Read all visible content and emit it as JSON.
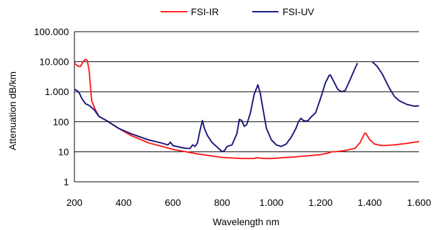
{
  "chart_data": {
    "type": "line",
    "title": "",
    "xlabel": "Wavelength nm",
    "ylabel": "Attenuation dB/km",
    "xlim": [
      200,
      1600
    ],
    "ylim": [
      1,
      100000
    ],
    "yscale": "log",
    "grid": "horizontal",
    "legend_position": "top",
    "x_tick_labels": [
      "200",
      "400",
      "600",
      "800",
      "1.000",
      "1.200",
      "1.400",
      "1.600"
    ],
    "x_tick_values": [
      200,
      400,
      600,
      800,
      1000,
      1200,
      1400,
      1600
    ],
    "y_tick_labels": [
      "1",
      "10",
      "100",
      "1.000",
      "10.000",
      "100.000"
    ],
    "y_tick_values": [
      1,
      10,
      100,
      1000,
      10000,
      100000
    ],
    "series": [
      {
        "name": "FSI-IR",
        "color": "#ff2020",
        "points": [
          [
            200,
            9000
          ],
          [
            215,
            7000
          ],
          [
            225,
            7000
          ],
          [
            235,
            10000
          ],
          [
            245,
            12000
          ],
          [
            252,
            11000
          ],
          [
            260,
            5000
          ],
          [
            270,
            500
          ],
          [
            285,
            250
          ],
          [
            300,
            150
          ],
          [
            330,
            110
          ],
          [
            380,
            60
          ],
          [
            430,
            35
          ],
          [
            500,
            20
          ],
          [
            600,
            12
          ],
          [
            700,
            8.5
          ],
          [
            800,
            6.5
          ],
          [
            880,
            6
          ],
          [
            930,
            6
          ],
          [
            940,
            6.4
          ],
          [
            950,
            6.2
          ],
          [
            970,
            6
          ],
          [
            1000,
            6
          ],
          [
            1100,
            6.8
          ],
          [
            1200,
            8
          ],
          [
            1230,
            9
          ],
          [
            1245,
            10
          ],
          [
            1260,
            10
          ],
          [
            1300,
            11
          ],
          [
            1340,
            13
          ],
          [
            1360,
            20
          ],
          [
            1375,
            35
          ],
          [
            1380,
            42
          ],
          [
            1385,
            40
          ],
          [
            1400,
            25
          ],
          [
            1420,
            18
          ],
          [
            1450,
            16
          ],
          [
            1500,
            17
          ],
          [
            1550,
            19
          ],
          [
            1600,
            22
          ]
        ]
      },
      {
        "name": "FSI-UV",
        "color": "#1a1a7a",
        "points": [
          [
            200,
            1200
          ],
          [
            210,
            1100
          ],
          [
            220,
            900
          ],
          [
            230,
            600
          ],
          [
            245,
            400
          ],
          [
            260,
            350
          ],
          [
            280,
            250
          ],
          [
            300,
            150
          ],
          [
            330,
            110
          ],
          [
            380,
            60
          ],
          [
            430,
            40
          ],
          [
            500,
            25
          ],
          [
            550,
            20
          ],
          [
            580,
            17
          ],
          [
            590,
            21
          ],
          [
            600,
            16
          ],
          [
            650,
            13
          ],
          [
            670,
            13
          ],
          [
            680,
            17
          ],
          [
            690,
            15
          ],
          [
            700,
            20
          ],
          [
            710,
            50
          ],
          [
            720,
            110
          ],
          [
            728,
            60
          ],
          [
            740,
            35
          ],
          [
            760,
            20
          ],
          [
            790,
            12
          ],
          [
            800,
            10
          ],
          [
            810,
            11
          ],
          [
            820,
            15
          ],
          [
            840,
            17
          ],
          [
            860,
            40
          ],
          [
            870,
            120
          ],
          [
            880,
            110
          ],
          [
            890,
            70
          ],
          [
            900,
            80
          ],
          [
            915,
            200
          ],
          [
            930,
            800
          ],
          [
            945,
            1700
          ],
          [
            955,
            900
          ],
          [
            965,
            300
          ],
          [
            980,
            60
          ],
          [
            1000,
            25
          ],
          [
            1020,
            17
          ],
          [
            1040,
            15
          ],
          [
            1060,
            18
          ],
          [
            1080,
            30
          ],
          [
            1100,
            60
          ],
          [
            1110,
            100
          ],
          [
            1120,
            130
          ],
          [
            1130,
            110
          ],
          [
            1140,
            105
          ],
          [
            1150,
            110
          ],
          [
            1160,
            140
          ],
          [
            1180,
            200
          ],
          [
            1200,
            600
          ],
          [
            1220,
            2000
          ],
          [
            1235,
            3500
          ],
          [
            1240,
            3600
          ],
          [
            1250,
            2500
          ],
          [
            1270,
            1200
          ],
          [
            1285,
            1000
          ],
          [
            1300,
            1100
          ],
          [
            1320,
            2500
          ],
          [
            1340,
            6000
          ],
          [
            1350,
            9000
          ]
        ],
        "points_2": [
          [
            1410,
            10000
          ],
          [
            1430,
            7000
          ],
          [
            1450,
            4000
          ],
          [
            1480,
            1300
          ],
          [
            1500,
            700
          ],
          [
            1520,
            500
          ],
          [
            1550,
            380
          ],
          [
            1580,
            330
          ],
          [
            1600,
            340
          ]
        ]
      }
    ]
  }
}
